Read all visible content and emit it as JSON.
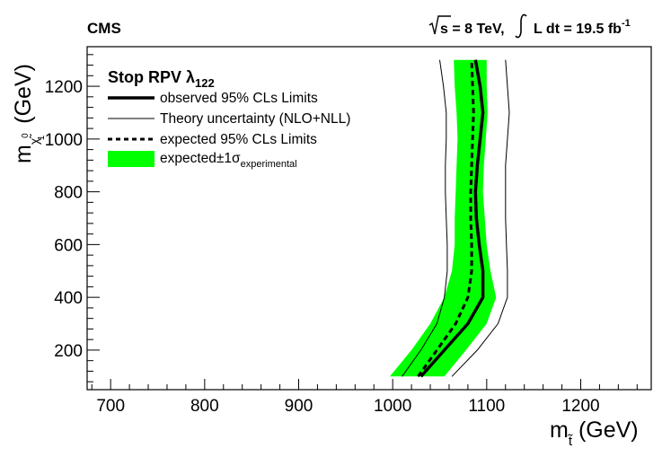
{
  "chart_data": {
    "type": "line",
    "experiment": "CMS",
    "energy_text": "s = 8 TeV,",
    "lumi_text": "L dt = 19.5 fb",
    "lumi_unit_exp": "-1",
    "legend_title": "Stop RPV λ",
    "legend_title_sub": "122",
    "xlabel_main": "m",
    "xlabel_sub": "t̃",
    "xlabel_unit": " (GeV)",
    "ylabel_main": "m",
    "ylabel_sub": "χ̃",
    "ylabel_sup": "0",
    "ylabel_index": "1",
    "ylabel_unit": " (GeV)",
    "xlim": [
      675,
      1275
    ],
    "ylim": [
      50,
      1350
    ],
    "x_ticks": [
      700,
      800,
      900,
      1000,
      1100,
      1200
    ],
    "y_ticks": [
      200,
      400,
      600,
      800,
      1000,
      1200
    ],
    "y": [
      100,
      200,
      300,
      400,
      500,
      600,
      700,
      800,
      900,
      1000,
      1100,
      1200,
      1300
    ],
    "series": [
      {
        "name": "observed 95% CLs Limits",
        "style": "thick-solid",
        "x": [
          1030,
          1055,
          1080,
          1096,
          1096,
          1092,
          1089,
          1088,
          1090,
          1093,
          1096,
          1093,
          1088
        ]
      },
      {
        "name": "Theory uncertainty (NLO+NLL)",
        "style": "thin-solid",
        "x_lower": [
          1010,
          1030,
          1047,
          1055,
          1058,
          1058,
          1057,
          1056,
          1056,
          1057,
          1057,
          1054,
          1050
        ],
        "x_upper": [
          1063,
          1090,
          1112,
          1122,
          1122,
          1121,
          1120,
          1120,
          1120,
          1122,
          1124,
          1122,
          1120
        ]
      },
      {
        "name": "expected 95% CLs Limits",
        "style": "dashed",
        "x": [
          1027,
          1047,
          1067,
          1080,
          1084,
          1084,
          1083,
          1083,
          1084,
          1085,
          1086,
          1085,
          1084
        ]
      },
      {
        "name": "expected±1σ",
        "name_sub": "experimental",
        "style": "band",
        "color": "#00ff00",
        "x_lower": [
          997,
          1020,
          1040,
          1055,
          1063,
          1066,
          1066,
          1067,
          1068,
          1069,
          1068,
          1066,
          1065
        ],
        "x_upper": [
          1055,
          1078,
          1100,
          1110,
          1104,
          1100,
          1098,
          1096,
          1097,
          1099,
          1101,
          1100,
          1100
        ]
      }
    ]
  }
}
